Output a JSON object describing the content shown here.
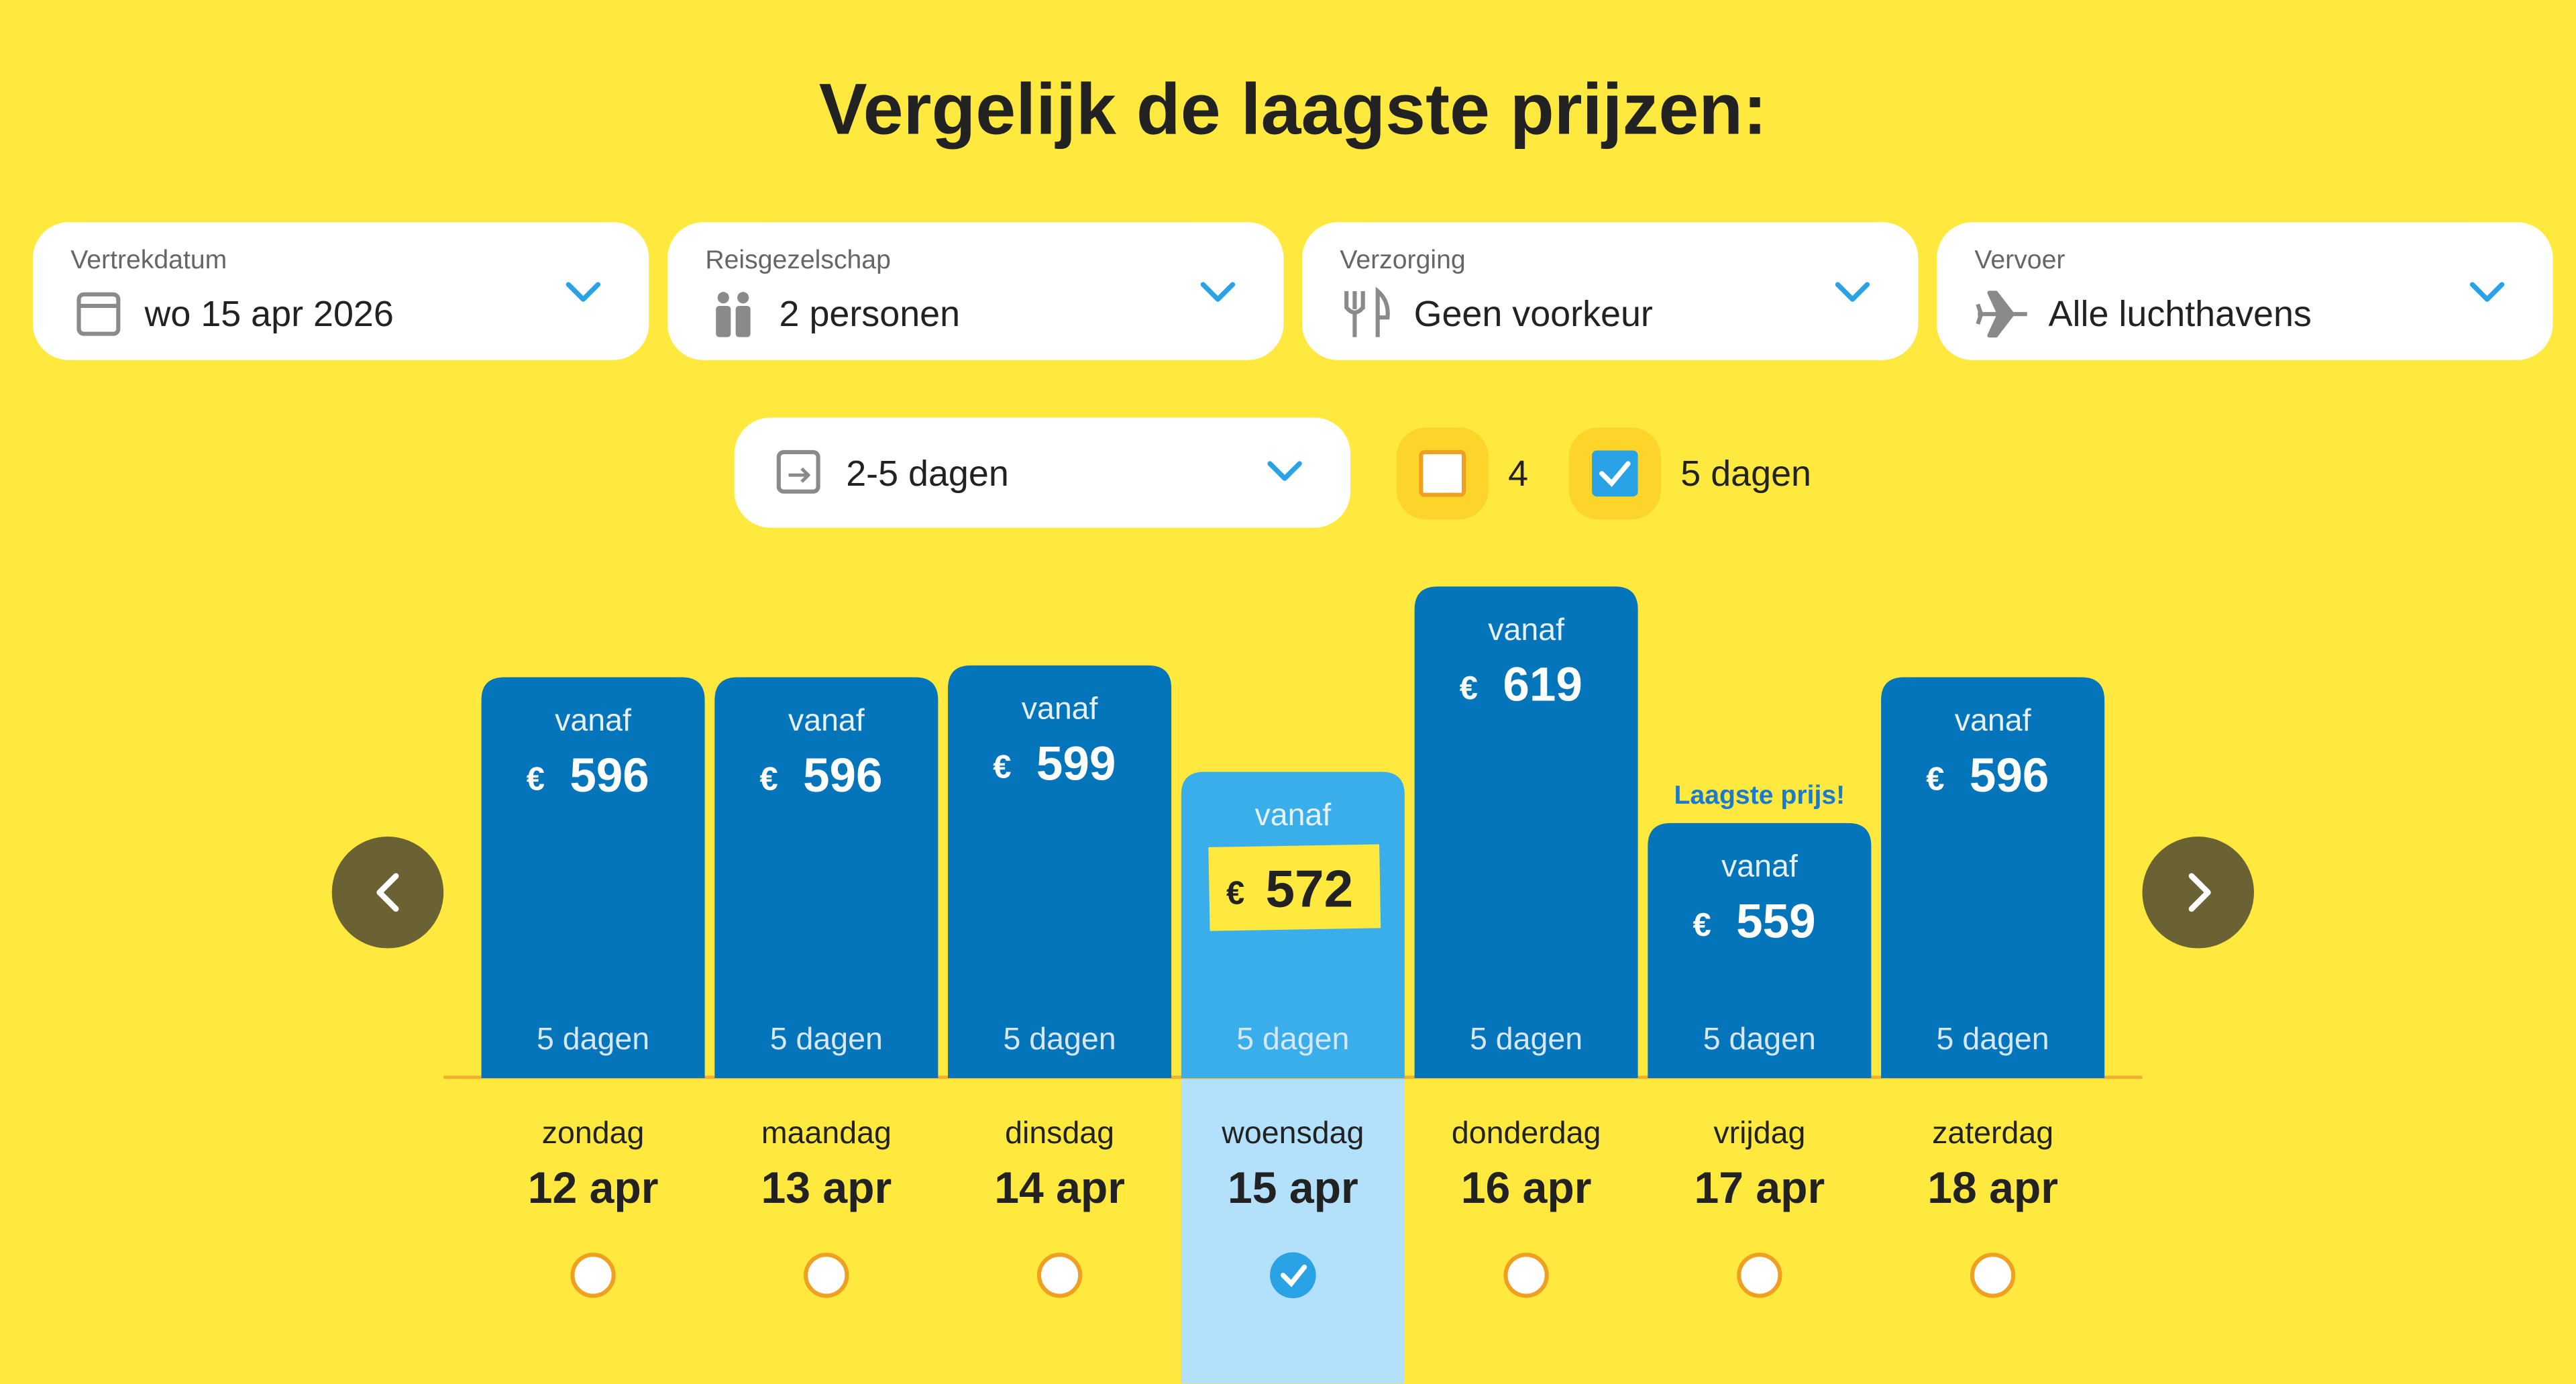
{
  "title": "Vergelijk de laagste prijzen:",
  "filters": [
    {
      "label": "Vertrekdatum",
      "value": "wo 15 apr 2026"
    },
    {
      "label": "Reisgezelschap",
      "value": "2 personen"
    },
    {
      "label": "Verzorging",
      "value": "Geen voorkeur"
    },
    {
      "label": "Vervoer",
      "value": "Alle luchthavens"
    }
  ],
  "duration": "2-5 dagen",
  "checkboxes": [
    {
      "label": "4",
      "checked": false
    },
    {
      "label": "5 dagen",
      "checked": true
    }
  ],
  "currency": "€",
  "days": [
    {
      "weekday": "zondag",
      "date": "12 apr",
      "from": "vanaf",
      "price": 596,
      "duration": "5 dagen",
      "selected": false
    },
    {
      "weekday": "maandag",
      "date": "13 apr",
      "from": "vanaf",
      "price": 596,
      "duration": "5 dagen",
      "selected": false
    },
    {
      "weekday": "dinsdag",
      "date": "14 apr",
      "from": "vanaf",
      "price": 599,
      "duration": "5 dagen",
      "selected": false
    },
    {
      "weekday": "woensdag",
      "date": "15 apr",
      "from": "vanaf",
      "price": 572,
      "duration": "5 dagen",
      "selected": true
    },
    {
      "weekday": "donderdag",
      "date": "16 apr",
      "from": "vanaf",
      "price": 619,
      "duration": "5 dagen",
      "selected": false
    },
    {
      "weekday": "vrijdag",
      "date": "17 apr",
      "from": "vanaf",
      "price": 559,
      "duration": "5 dagen",
      "selected": false,
      "badge": "Laagste prijs!"
    },
    {
      "weekday": "zaterdag",
      "date": "18 apr",
      "from": "vanaf",
      "price": 596,
      "duration": "5 dagen",
      "selected": false
    }
  ]
}
